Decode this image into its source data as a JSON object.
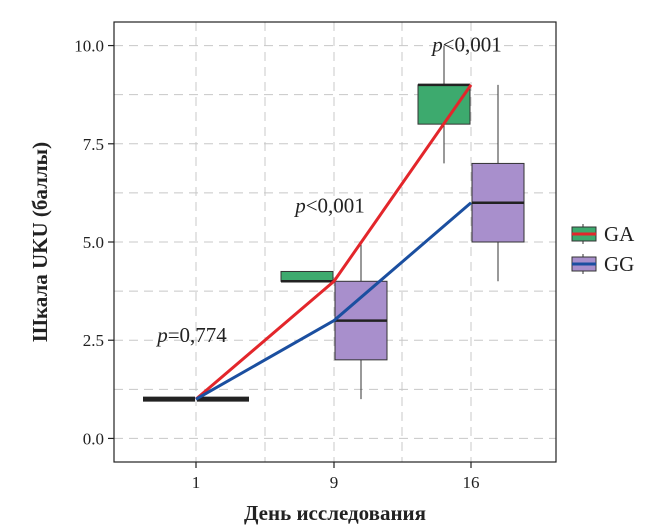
{
  "chart_data": {
    "type": "box",
    "xlabel": "День исследования",
    "ylabel": "Шкала UKU (баллы)",
    "categories": [
      "1",
      "9",
      "16"
    ],
    "ylim": [
      -0.6,
      10.6
    ],
    "yticks": [
      "0.0",
      "2.5",
      "5.0",
      "7.5",
      "10.0"
    ],
    "grid": true,
    "legend_position": "right",
    "series": [
      {
        "name": "GA",
        "color": "#3daa6e",
        "line_color": "#e3262b",
        "boxes": [
          {
            "category": "1",
            "min": 1,
            "q1": 1,
            "median": 1,
            "q3": 1,
            "max": 1
          },
          {
            "category": "9",
            "min": 4,
            "q1": 4,
            "median": 4,
            "q3": 4.25,
            "max": 4.25
          },
          {
            "category": "16",
            "min": 7,
            "q1": 8,
            "median": 9,
            "q3": 9,
            "max": 10
          }
        ],
        "means": [
          1,
          4,
          9
        ]
      },
      {
        "name": "GG",
        "color": "#a88fcc",
        "line_color": "#1b4fa0",
        "boxes": [
          {
            "category": "1",
            "min": 1,
            "q1": 1,
            "median": 1,
            "q3": 1,
            "max": 1
          },
          {
            "category": "9",
            "min": 1,
            "q1": 2,
            "median": 3,
            "q3": 4,
            "max": 5
          },
          {
            "category": "16",
            "min": 4,
            "q1": 5,
            "median": 6,
            "q3": 7,
            "max": 9
          }
        ],
        "means": [
          1,
          3,
          6
        ]
      }
    ],
    "annotations": [
      {
        "category": "1",
        "p_symbol": "p",
        "text": "=0,774",
        "y": 2.45
      },
      {
        "category": "9",
        "p_symbol": "p",
        "text": "<0,001",
        "y": 5.75
      },
      {
        "category": "16",
        "p_symbol": "p",
        "text": "<0,001",
        "y": 9.85
      }
    ]
  }
}
